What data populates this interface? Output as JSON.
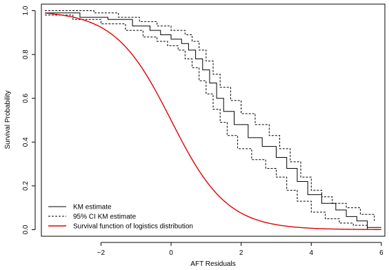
{
  "chart_data": {
    "type": "line",
    "title": "",
    "xlabel": "AFT Residuals",
    "ylabel": "Survival Probability",
    "xlim": [
      -3.7,
      6.1
    ],
    "ylim": [
      -0.03,
      1.03
    ],
    "xticks": [
      -2,
      0,
      2,
      4,
      6
    ],
    "xtick_labels": [
      "−2",
      "0",
      "2",
      "4",
      "6"
    ],
    "yticks": [
      0.0,
      0.2,
      0.4,
      0.6,
      0.8,
      1.0
    ],
    "ytick_labels": [
      "0.0",
      "0.2",
      "0.4",
      "0.6",
      "0.8",
      "1.0"
    ],
    "grid": false,
    "legend_position": "bottom-left",
    "series": [
      {
        "name": "KM estimate",
        "style": "step-solid",
        "color": "#000000",
        "x": [
          -3.6,
          -2.6,
          -1.8,
          -1.1,
          -0.6,
          -0.3,
          0.0,
          0.3,
          0.5,
          0.7,
          0.9,
          1.1,
          1.3,
          1.5,
          1.8,
          2.2,
          2.6,
          3.0,
          3.3,
          3.6,
          3.9,
          4.3,
          4.7,
          5.0,
          5.3,
          5.6,
          6.0
        ],
        "y": [
          0.99,
          0.97,
          0.96,
          0.93,
          0.91,
          0.89,
          0.87,
          0.85,
          0.82,
          0.78,
          0.73,
          0.67,
          0.6,
          0.54,
          0.48,
          0.42,
          0.38,
          0.33,
          0.28,
          0.22,
          0.16,
          0.12,
          0.09,
          0.06,
          0.04,
          0.01,
          0.01
        ]
      },
      {
        "name": "95% CI KM estimate",
        "style": "step-dashed",
        "color": "#000000",
        "x": [
          -3.6,
          -2.2,
          -1.5,
          -0.9,
          -0.4,
          0.0,
          0.4,
          0.6,
          0.8,
          1.0,
          1.2,
          1.4,
          1.7,
          2.0,
          2.4,
          2.8,
          3.1,
          3.4,
          3.7,
          4.0,
          4.3,
          4.6,
          5.0,
          5.4,
          5.8
        ],
        "y": [
          1.0,
          0.99,
          0.97,
          0.95,
          0.93,
          0.91,
          0.89,
          0.86,
          0.82,
          0.77,
          0.71,
          0.65,
          0.59,
          0.53,
          0.48,
          0.43,
          0.37,
          0.31,
          0.24,
          0.18,
          0.15,
          0.12,
          0.1,
          0.07,
          0.04
        ]
      },
      {
        "name": "",
        "style": "step-dashed",
        "color": "#000000",
        "x": [
          -3.6,
          -2.8,
          -2.0,
          -1.3,
          -0.8,
          -0.4,
          -0.1,
          0.2,
          0.4,
          0.6,
          0.8,
          1.0,
          1.2,
          1.4,
          1.6,
          1.9,
          2.3,
          2.7,
          3.0,
          3.3,
          3.6,
          4.0,
          4.4,
          4.8,
          5.2,
          5.6
        ],
        "y": [
          0.98,
          0.96,
          0.94,
          0.91,
          0.88,
          0.86,
          0.84,
          0.82,
          0.78,
          0.74,
          0.68,
          0.62,
          0.55,
          0.49,
          0.43,
          0.37,
          0.32,
          0.28,
          0.24,
          0.18,
          0.13,
          0.08,
          0.05,
          0.03,
          0.02,
          0.0
        ]
      },
      {
        "name": "Survival function of logistics distribution",
        "style": "smooth",
        "color": "#dd0000",
        "function": "logistic_survival",
        "location": 0,
        "scale": 0.8,
        "xrange": [
          -3.6,
          6.0
        ]
      }
    ]
  }
}
